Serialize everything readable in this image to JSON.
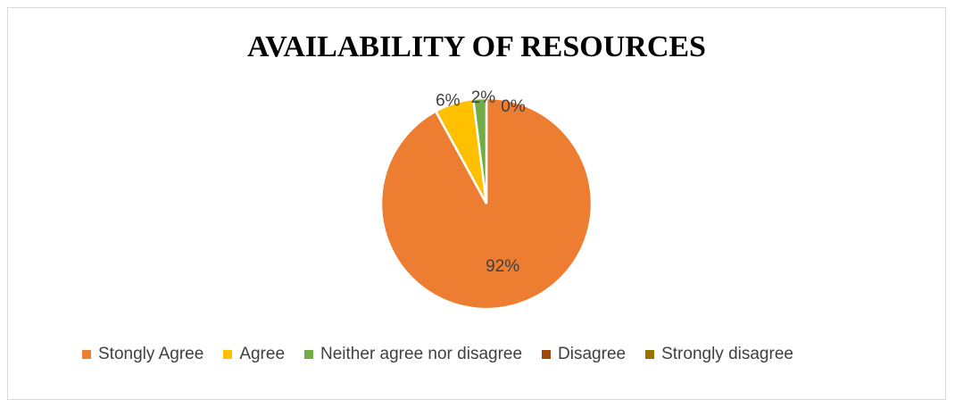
{
  "chart_data": {
    "type": "pie",
    "title": "AVAILABILITY OF RESOURCES",
    "categories": [
      "Stongly Agree",
      "Agree",
      "Neither agree nor disagree",
      "Disagree",
      "Strongly disagree"
    ],
    "values": [
      92,
      6,
      2,
      0,
      0
    ],
    "data_labels": [
      "92%",
      "6%",
      "2%",
      "0%",
      ""
    ],
    "colors": [
      "#ED7D31",
      "#FFC000",
      "#70AD47",
      "#9E480E",
      "#997300"
    ],
    "legend_position": "bottom"
  }
}
